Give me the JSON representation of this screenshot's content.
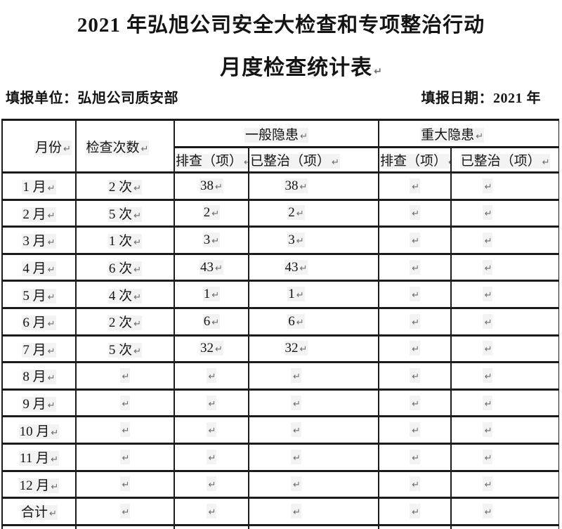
{
  "title": {
    "line1": "2021 年弘旭公司安全大检查和专项整治行动",
    "line2": "月度检查统计表"
  },
  "meta": {
    "unit": "填报单位：弘旭公司质安部",
    "date": "填报日期：2021 年"
  },
  "marks": {
    "pilcrow": "↵"
  },
  "colors": {
    "border": "#1b1b1b",
    "text": "#141414",
    "pilcrow": "#6b6b6b",
    "highlight": "#f3f3f3",
    "background": "#ffffff"
  },
  "table": {
    "headers": {
      "month": "月份",
      "inspections": "检查次数",
      "general": "一般隐患",
      "major": "重大隐患",
      "screened": "排查（项）",
      "rectified": "已整治（项）"
    },
    "rows": [
      {
        "month": "1 月",
        "count": "2 次",
        "g_screen": "38",
        "g_fix": "38",
        "m_screen": "",
        "m_fix": ""
      },
      {
        "month": "2 月",
        "count": "5 次",
        "g_screen": "2",
        "g_fix": "2",
        "m_screen": "",
        "m_fix": ""
      },
      {
        "month": "3 月",
        "count": "1 次",
        "g_screen": "3",
        "g_fix": "3",
        "m_screen": "",
        "m_fix": ""
      },
      {
        "month": "4 月",
        "count": "6 次",
        "g_screen": "43",
        "g_fix": "43",
        "m_screen": "",
        "m_fix": ""
      },
      {
        "month": "5 月",
        "count": "4 次",
        "g_screen": "1",
        "g_fix": "1",
        "m_screen": "",
        "m_fix": ""
      },
      {
        "month": "6 月",
        "count": "2 次",
        "g_screen": "6",
        "g_fix": "6",
        "m_screen": "",
        "m_fix": ""
      },
      {
        "month": "7 月",
        "count": "5 次",
        "g_screen": "32",
        "g_fix": "32",
        "m_screen": "",
        "m_fix": ""
      },
      {
        "month": "8 月",
        "count": "",
        "g_screen": "",
        "g_fix": "",
        "m_screen": "",
        "m_fix": ""
      },
      {
        "month": "9 月",
        "count": "",
        "g_screen": "",
        "g_fix": "",
        "m_screen": "",
        "m_fix": ""
      },
      {
        "month": "10 月",
        "count": "",
        "g_screen": "",
        "g_fix": "",
        "m_screen": "",
        "m_fix": ""
      },
      {
        "month": "11 月",
        "count": "",
        "g_screen": "",
        "g_fix": "",
        "m_screen": "",
        "m_fix": ""
      },
      {
        "month": "12 月",
        "count": "",
        "g_screen": "",
        "g_fix": "",
        "m_screen": "",
        "m_fix": ""
      },
      {
        "month": "合计",
        "count": "",
        "g_screen": "",
        "g_fix": "",
        "m_screen": "",
        "m_fix": ""
      }
    ]
  }
}
